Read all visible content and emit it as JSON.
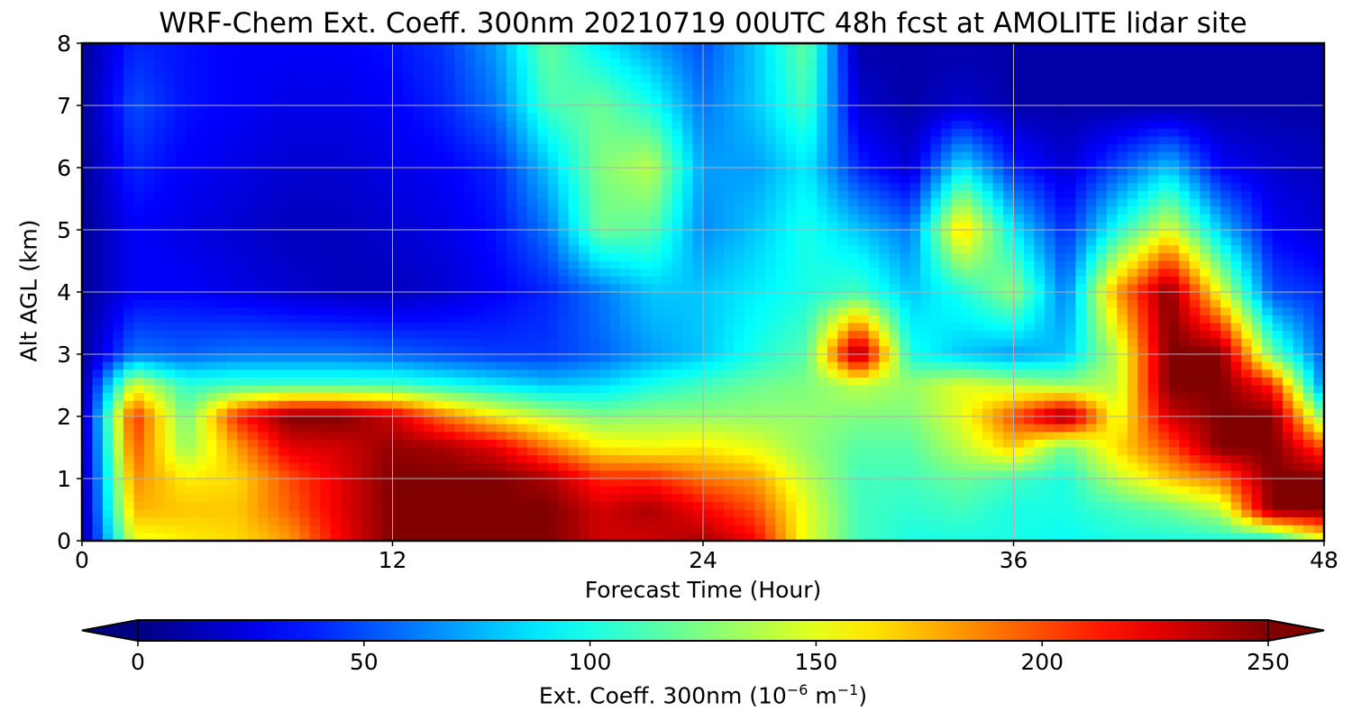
{
  "chart_data": {
    "type": "heatmap",
    "title": "WRF-Chem Ext. Coeff. 300nm  20210719 00UTC 48h fcst at AMOLITE lidar site",
    "xlabel": "Forecast Time (Hour)",
    "ylabel": "Alt AGL (km)",
    "xlim": [
      0,
      48
    ],
    "ylim": [
      0,
      8
    ],
    "x_ticks": [
      0,
      12,
      24,
      36,
      48
    ],
    "y_ticks": [
      0,
      1,
      2,
      3,
      4,
      5,
      6,
      7,
      8
    ],
    "grid": true,
    "colormap": "jet",
    "colorbar": {
      "orientation": "horizontal",
      "placement": "bottom",
      "range": [
        0,
        250
      ],
      "extend": "both",
      "ticks": [
        0,
        50,
        100,
        150,
        200,
        250
      ],
      "label_prefix": "Ext. Coeff. 300nm  (10",
      "label_exp1": "−6",
      "label_mid": " m",
      "label_exp2": "−1",
      "label_suffix": ")"
    },
    "x_hours": [
      0,
      2,
      4,
      6,
      8,
      10,
      12,
      14,
      16,
      18,
      20,
      22,
      24,
      26,
      28,
      30,
      32,
      34,
      36,
      38,
      40,
      42,
      44,
      46,
      48
    ],
    "y_km": [
      0,
      0.5,
      1,
      1.5,
      2,
      2.5,
      3,
      4,
      5,
      6,
      7,
      8
    ],
    "z": [
      [
        5,
        150,
        160,
        165,
        180,
        220,
        250,
        250,
        250,
        250,
        230,
        230,
        240,
        220,
        150,
        110,
        100,
        100,
        100,
        95,
        100,
        100,
        100,
        90,
        150
      ],
      [
        5,
        175,
        170,
        170,
        195,
        225,
        250,
        250,
        250,
        250,
        230,
        240,
        220,
        200,
        150,
        110,
        105,
        110,
        100,
        100,
        110,
        120,
        140,
        250,
        250
      ],
      [
        5,
        185,
        160,
        165,
        200,
        225,
        250,
        250,
        250,
        240,
        210,
        210,
        190,
        180,
        140,
        110,
        110,
        120,
        110,
        100,
        140,
        170,
        190,
        250,
        250
      ],
      [
        5,
        200,
        130,
        180,
        225,
        230,
        245,
        240,
        225,
        190,
        160,
        155,
        160,
        150,
        130,
        115,
        115,
        140,
        170,
        120,
        165,
        200,
        250,
        250,
        200
      ],
      [
        5,
        210,
        120,
        210,
        250,
        250,
        230,
        190,
        160,
        140,
        125,
        130,
        130,
        130,
        130,
        125,
        125,
        150,
        200,
        250,
        150,
        230,
        250,
        250,
        120
      ],
      [
        5,
        150,
        105,
        110,
        110,
        110,
        110,
        100,
        90,
        80,
        85,
        100,
        110,
        120,
        125,
        140,
        130,
        150,
        140,
        130,
        140,
        250,
        250,
        210,
        60
      ],
      [
        5,
        60,
        55,
        60,
        60,
        60,
        55,
        50,
        45,
        45,
        55,
        70,
        80,
        100,
        115,
        250,
        100,
        80,
        70,
        80,
        140,
        250,
        250,
        120,
        50
      ],
      [
        5,
        30,
        30,
        25,
        20,
        15,
        15,
        20,
        30,
        40,
        60,
        80,
        80,
        90,
        100,
        110,
        80,
        100,
        130,
        60,
        180,
        250,
        150,
        50,
        40
      ],
      [
        5,
        30,
        25,
        20,
        15,
        15,
        20,
        25,
        35,
        60,
        120,
        115,
        65,
        80,
        100,
        80,
        60,
        170,
        90,
        40,
        100,
        150,
        80,
        30,
        20
      ],
      [
        5,
        40,
        30,
        25,
        20,
        20,
        25,
        30,
        40,
        80,
        125,
        140,
        70,
        70,
        90,
        40,
        20,
        90,
        40,
        20,
        50,
        80,
        30,
        20,
        15
      ],
      [
        5,
        50,
        35,
        30,
        25,
        25,
        30,
        40,
        60,
        110,
        120,
        100,
        60,
        80,
        110,
        20,
        10,
        20,
        10,
        10,
        10,
        10,
        10,
        10,
        10
      ],
      [
        5,
        40,
        35,
        30,
        30,
        30,
        35,
        45,
        70,
        120,
        90,
        70,
        50,
        80,
        120,
        10,
        10,
        10,
        10,
        10,
        10,
        10,
        10,
        10,
        10
      ]
    ]
  }
}
